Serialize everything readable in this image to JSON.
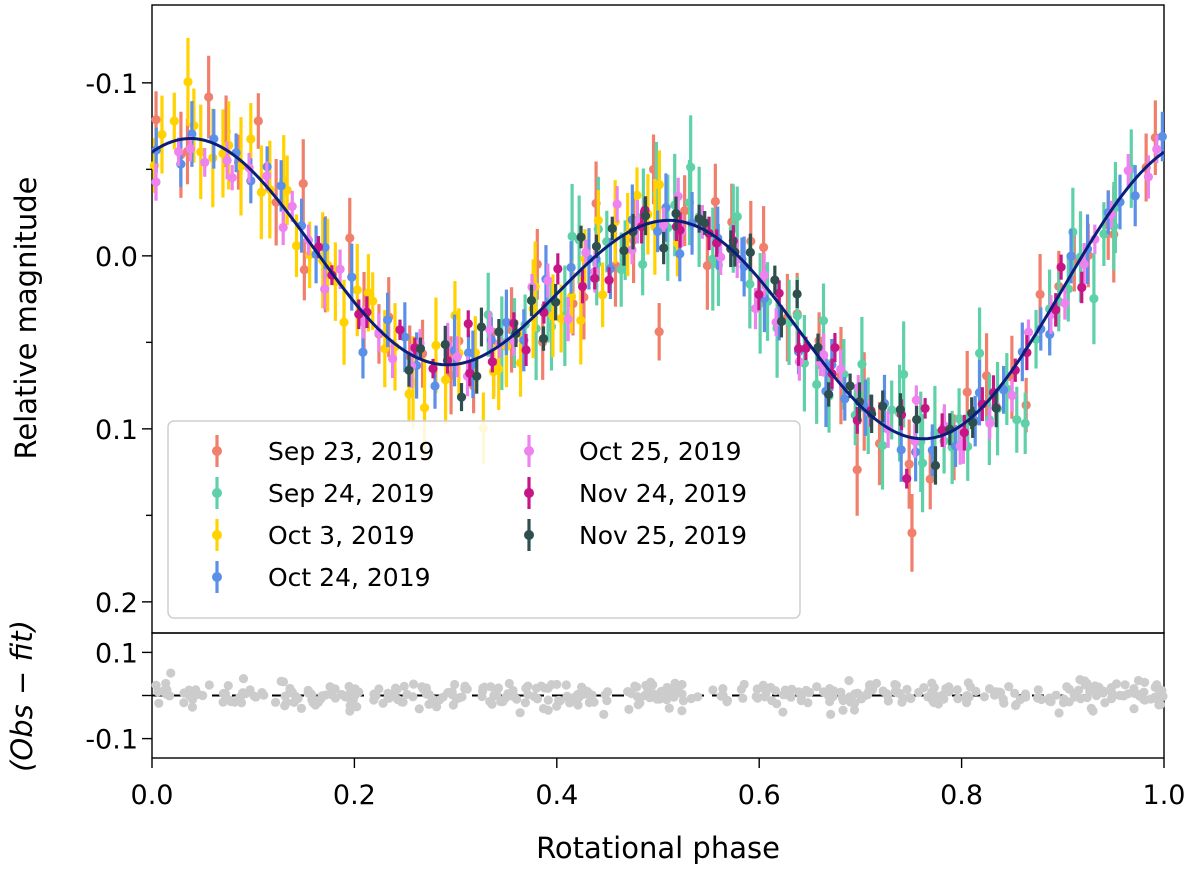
{
  "chart_data": {
    "type": "scatter",
    "title": "",
    "xlabel": "Rotational phase",
    "xlim": [
      0.0,
      1.0
    ],
    "x_ticks": [
      "0.0",
      "0.2",
      "0.4",
      "0.6",
      "0.8",
      "1.0"
    ],
    "panels": {
      "main": {
        "ylabel": "Relative magnitude",
        "ylim": [
          -0.145,
          0.218
        ],
        "y_inverted": true,
        "y_ticks": [
          "-0.1",
          "0.0",
          "0.1",
          "0.2"
        ],
        "fit_curve": {
          "color": "#0b1f7a",
          "offset": 0.02,
          "harmonics": [
            {
              "order": 1,
              "cos": -0.02,
              "sin": -0.025
            },
            {
              "order": 2,
              "cos": -0.06,
              "sin": -0.02
            }
          ]
        },
        "legend": {
          "location": "lower-left",
          "entries": [
            {
              "label": "Sep 23, 2019",
              "color": "#f07f6c"
            },
            {
              "label": "Sep 24, 2019",
              "color": "#5fd1a8"
            },
            {
              "label": "Oct 3, 2019",
              "color": "#ffd200"
            },
            {
              "label": "Oct 24, 2019",
              "color": "#5b8fe8"
            },
            {
              "label": "Oct 25, 2019",
              "color": "#ee82ee"
            },
            {
              "label": "Nov 24, 2019",
              "color": "#c71585"
            },
            {
              "label": "Nov 25, 2019",
              "color": "#2f4f4f"
            }
          ]
        },
        "series": [
          {
            "name": "Sep 23, 2019",
            "color": "#f07f6c",
            "x_range": [
              0.0,
              1.0
            ],
            "count": 60,
            "scatter": 0.018,
            "err": 0.022,
            "seed": 11
          },
          {
            "name": "Sep 24, 2019",
            "color": "#5fd1a8",
            "x_range": [
              0.33,
              0.97
            ],
            "count": 70,
            "scatter": 0.017,
            "err": 0.024,
            "seed": 23
          },
          {
            "name": "Oct 3, 2019",
            "color": "#ffd200",
            "x_range": [
              0.0,
              0.52
            ],
            "count": 55,
            "scatter": 0.016,
            "err": 0.022,
            "seed": 37
          },
          {
            "name": "Oct 24, 2019",
            "color": "#5b8fe8",
            "x_range": [
              0.0,
              1.0
            ],
            "count": 60,
            "scatter": 0.009,
            "err": 0.016,
            "seed": 41
          },
          {
            "name": "Oct 25, 2019",
            "color": "#ee82ee",
            "x_range": [
              0.0,
              1.0
            ],
            "count": 65,
            "scatter": 0.011,
            "err": 0.01,
            "seed": 53
          },
          {
            "name": "Nov 24, 2019",
            "color": "#c71585",
            "x_range": [
              0.16,
              0.93
            ],
            "count": 45,
            "scatter": 0.009,
            "err": 0.008,
            "seed": 67
          },
          {
            "name": "Nov 25, 2019",
            "color": "#2f4f4f",
            "x_range": [
              0.25,
              0.84
            ],
            "count": 40,
            "scatter": 0.009,
            "err": 0.009,
            "seed": 79
          }
        ]
      },
      "residual": {
        "ylabel": "(Obs − fit)",
        "ylim": [
          -0.145,
          0.145
        ],
        "y_ticks": [
          "0.1",
          "-0.1"
        ],
        "color": "#cccccc",
        "count": 420,
        "scatter": 0.017,
        "seed": 97
      }
    }
  }
}
